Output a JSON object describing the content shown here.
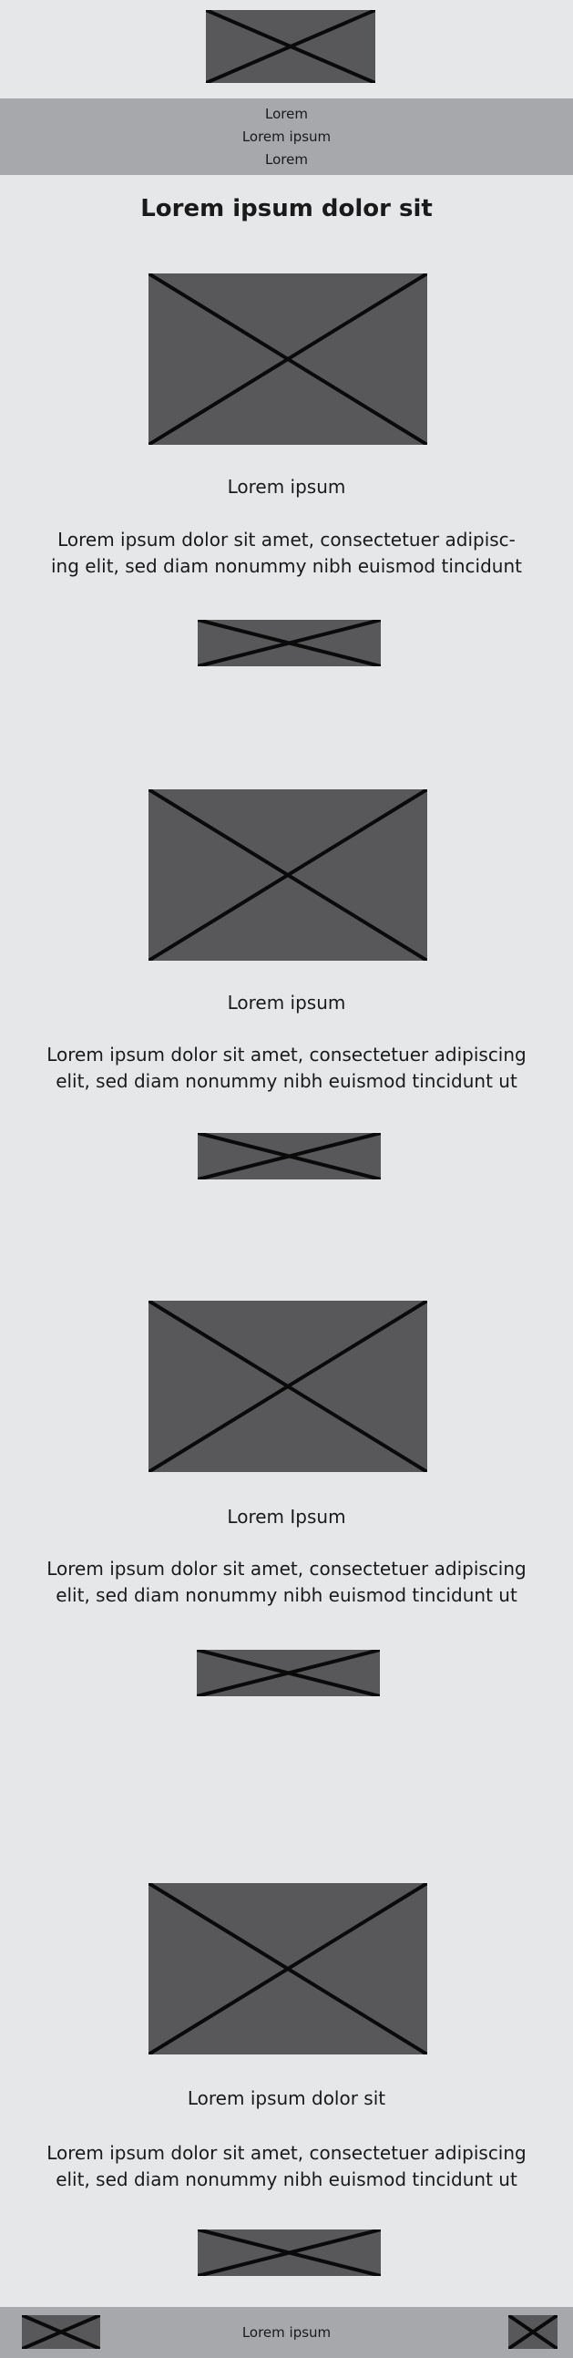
{
  "header": {
    "logo_icon": "image-placeholder-icon"
  },
  "nav": {
    "items": [
      "Lorem",
      "Lorem ipsum",
      "Lorem"
    ]
  },
  "page": {
    "title": "Lorem ipsum dolor sit"
  },
  "sections": [
    {
      "image_icon": "image-placeholder-icon",
      "heading": "Lorem ipsum",
      "body_lines": [
        "Lorem ipsum dolor sit amet, consectetuer adipisc-",
        "ing elit, sed diam nonummy nibh euismod tincidunt"
      ],
      "button_icon": "button-placeholder-icon"
    },
    {
      "image_icon": "image-placeholder-icon",
      "heading": "Lorem ipsum",
      "body_lines": [
        "Lorem ipsum dolor sit amet, consectetuer adipiscing",
        "elit, sed diam nonummy nibh euismod tincidunt ut"
      ],
      "button_icon": "button-placeholder-icon"
    },
    {
      "image_icon": "image-placeholder-icon",
      "heading": "Lorem Ipsum",
      "body_lines": [
        "Lorem ipsum dolor sit amet, consectetuer adipiscing",
        "elit, sed diam nonummy nibh euismod tincidunt ut"
      ],
      "button_icon": "button-placeholder-icon"
    },
    {
      "image_icon": "image-placeholder-icon",
      "heading": "Lorem ipsum dolor sit",
      "body_lines": [
        "Lorem ipsum dolor sit amet, consectetuer adipiscing",
        "elit, sed diam nonummy nibh euismod tincidunt ut"
      ],
      "button_icon": "button-placeholder-icon"
    }
  ],
  "footer": {
    "label": "Lorem ipsum"
  },
  "colors": {
    "background": "#e6e7e9",
    "bar": "#a7a8ac",
    "placeholder": "#58585a",
    "stroke": "#0a0a0a"
  }
}
